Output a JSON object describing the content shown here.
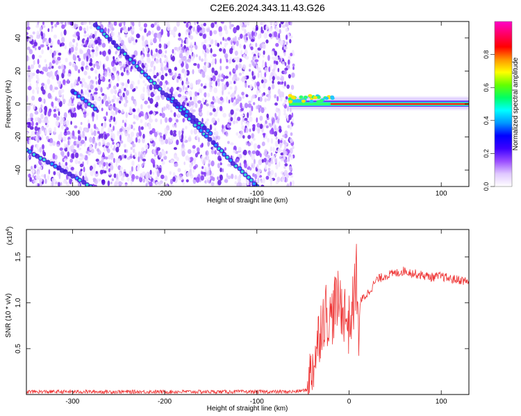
{
  "title": "C2E6.2024.343.11.43.G26",
  "chart_data": [
    {
      "type": "heatmap",
      "xlabel": "Height of straight line (km)",
      "ylabel": "Frequency (Hz)",
      "xlim": [
        -350,
        130
      ],
      "ylim": [
        -50,
        50
      ],
      "x_ticks": [
        -300,
        -200,
        -100,
        0,
        100
      ],
      "y_ticks": [
        -40,
        -20,
        0,
        20,
        40
      ],
      "colorbar": {
        "label": "Normalized spectral amplitude",
        "range": [
          0,
          1
        ],
        "ticks": [
          "0.0",
          "0.2",
          "0.4",
          "0.6",
          "0.8"
        ],
        "colors": [
          "#ffffff",
          "#e0c8ff",
          "#9a4dff",
          "#3c00ff",
          "#0000ff",
          "#0096ff",
          "#00ffff",
          "#00ff64",
          "#64ff00",
          "#ffff00",
          "#ff9600",
          "#ff0000",
          "#ff0064",
          "#ff00c8"
        ]
      },
      "features": [
        {
          "name": "noise_region",
          "x_range": [
            -350,
            -60
          ]
        },
        {
          "name": "track_1",
          "points": [
            [
              -275,
              48
            ],
            [
              -100,
              -50
            ]
          ]
        },
        {
          "name": "track_2",
          "points": [
            [
              -350,
              -28
            ],
            [
              -280,
              -50
            ]
          ]
        },
        {
          "name": "track_3",
          "points": [
            [
              -195,
              5
            ],
            [
              -150,
              -18
            ]
          ]
        },
        {
          "name": "short_track",
          "points": [
            [
              -300,
              8
            ],
            [
              -275,
              -3
            ]
          ]
        },
        {
          "name": "signal_line",
          "x_range": [
            -65,
            130
          ],
          "frequency": 0
        }
      ]
    },
    {
      "type": "line",
      "xlabel": "Height of straight line (km)",
      "ylabel": "SNR (10 * v/v)",
      "y_multiplier": "(x10",
      "y_multiplier_exp": "4",
      "y_multiplier_close": ")",
      "xlim": [
        -350,
        130
      ],
      "ylim": [
        0,
        1.8
      ],
      "x_ticks": [
        -300,
        -200,
        -100,
        0,
        100
      ],
      "y_ticks": [
        0.5,
        1.0,
        1.5
      ],
      "y_tick_labels": [
        "0.5",
        "1.0",
        "1.5"
      ],
      "series_color": "#ee3333",
      "series": [
        {
          "x": [
            -350,
            -300,
            -250,
            -200,
            -150,
            -100,
            -60,
            -45,
            -40,
            -35,
            -30,
            -25,
            -20,
            -15,
            -10,
            -5,
            0,
            5,
            8,
            10,
            12,
            15,
            20,
            30,
            40,
            50,
            60,
            70,
            80,
            90,
            100,
            110,
            120,
            130
          ],
          "values": [
            0.03,
            0.03,
            0.03,
            0.03,
            0.03,
            0.03,
            0.03,
            0.05,
            0.3,
            0.5,
            0.8,
            0.9,
            0.8,
            1.0,
            1.0,
            0.9,
            0.75,
            1.0,
            1.35,
            0.6,
            1.0,
            1.05,
            1.1,
            1.25,
            1.3,
            1.32,
            1.35,
            1.32,
            1.3,
            1.28,
            1.29,
            1.26,
            1.25,
            1.23
          ]
        }
      ]
    }
  ]
}
